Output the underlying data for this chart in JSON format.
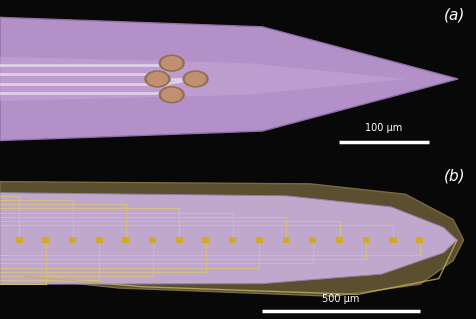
{
  "fig_width": 4.77,
  "fig_height": 3.19,
  "dpi": 100,
  "bg_color": "#080808",
  "panel_a": {
    "label": "(a)",
    "bg": "#080808",
    "probe_color": "#b490c8",
    "probe_edge": "#9070a8",
    "probe_inner_color": "#c8a8d8",
    "trace_color": "#ddd0e8",
    "electrode_color": "#c09070",
    "electrode_edge": "#907050",
    "scalebar_text": "100 μm",
    "scalebar_color": "white"
  },
  "panel_b": {
    "label": "(b)",
    "bg": "#080808",
    "outer_shank_color": "#5a5030",
    "outer_shank_edge": "#7a6a40",
    "probe_color": "#c0a8cc",
    "probe_edge": "#9080a8",
    "trace_color": "#d8c088",
    "electrode_color": "#d4a828",
    "scalebar_text": "500 μm",
    "scalebar_color": "white"
  }
}
